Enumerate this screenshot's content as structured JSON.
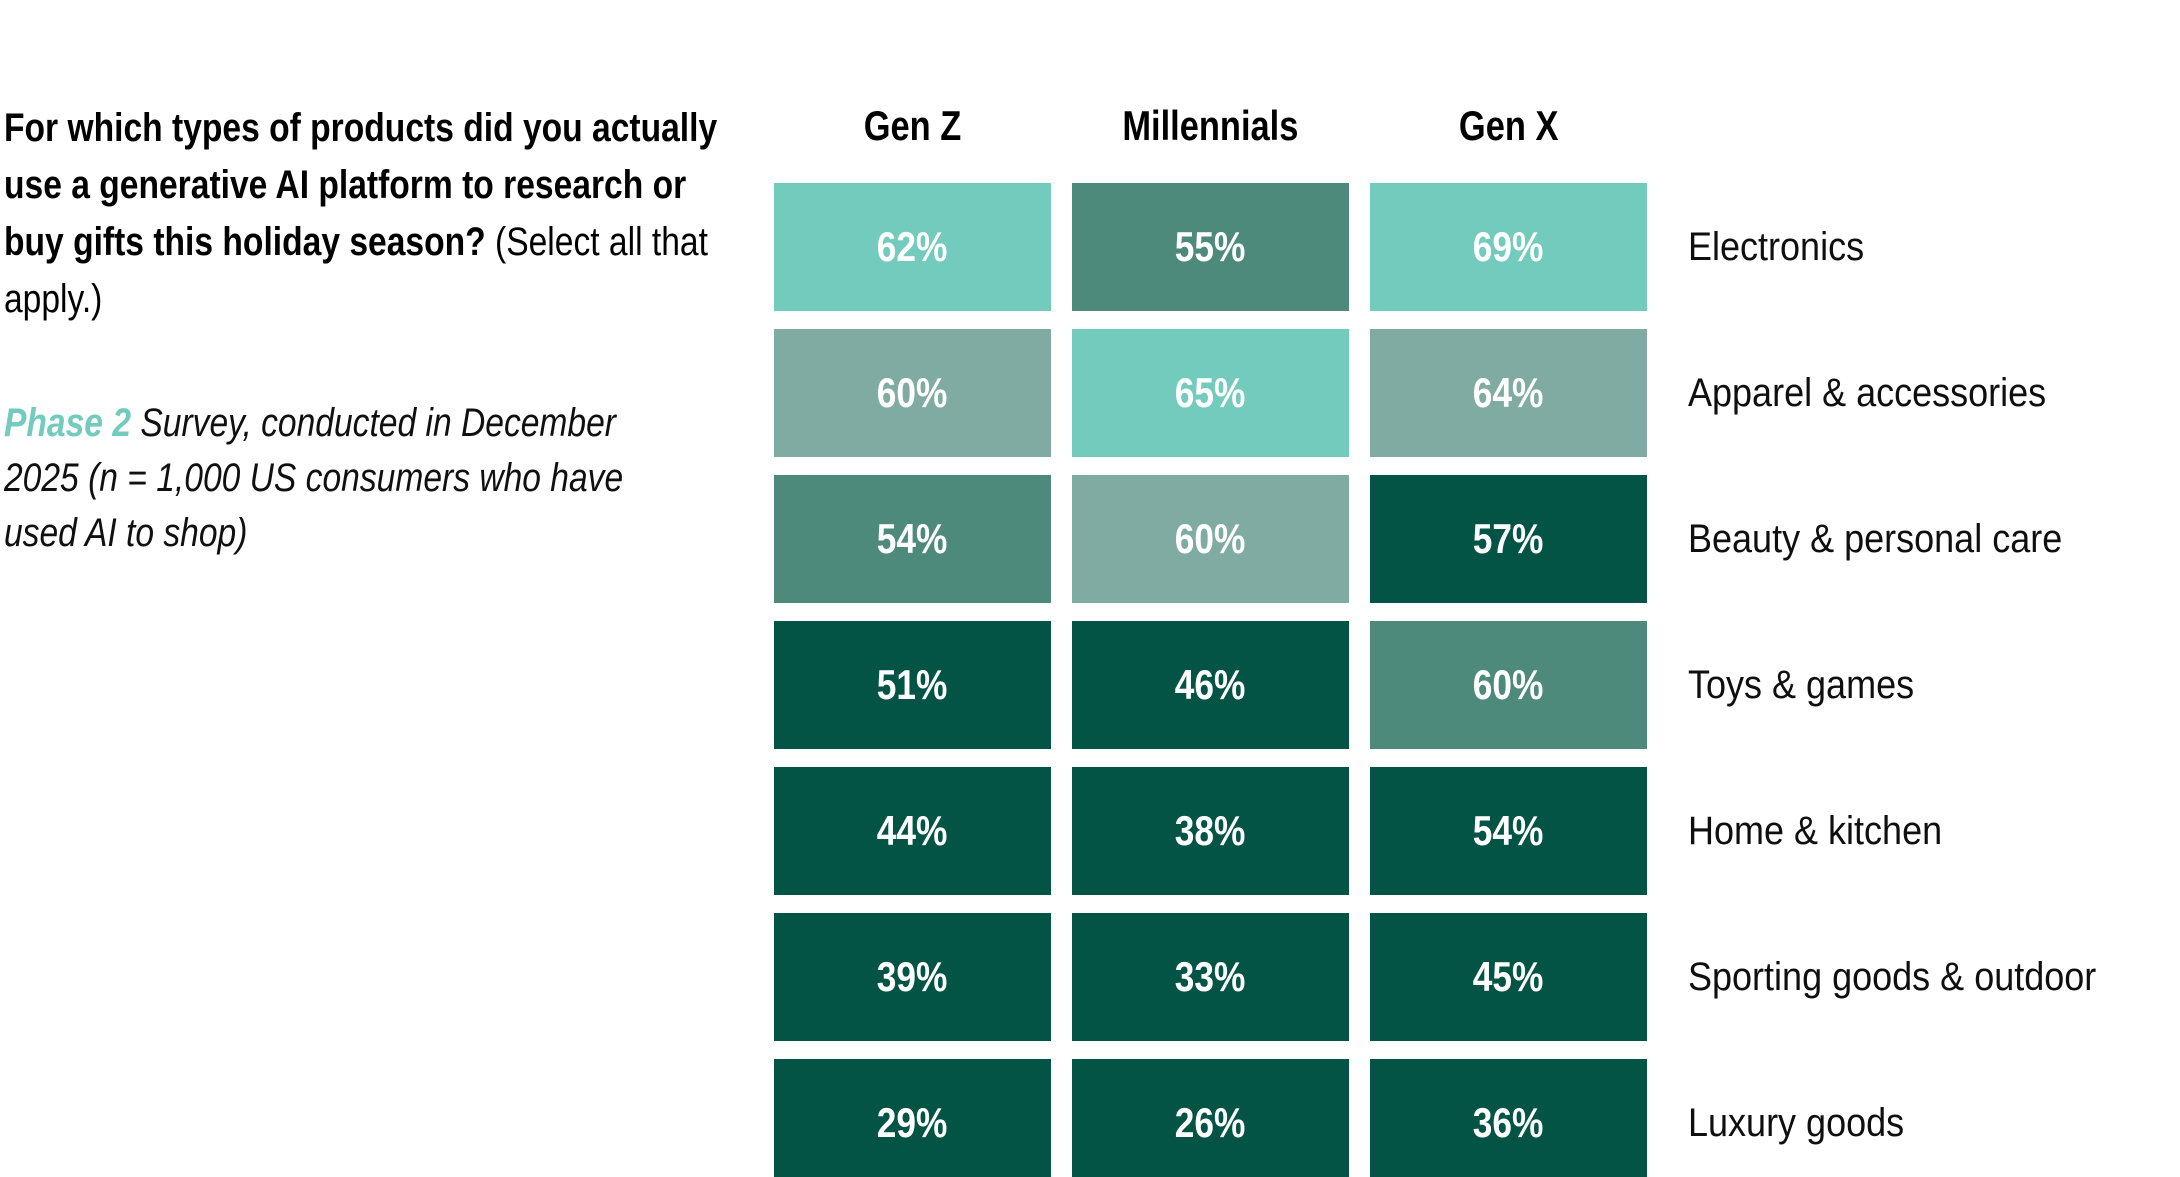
{
  "header": {
    "question_bold": "For which types of products did you actually use a generative AI platform to research or buy gifts this holiday season?",
    "question_note": " (Select all that apply.)",
    "source_accent": "Phase 2",
    "source_rest": " Survey, conducted in December 2025 (n = 1,000 US consumers who have used AI to shop)"
  },
  "chart_data": {
    "type": "heatmap",
    "title": "For which types of products did you actually use a generative AI platform to research or buy gifts this holiday season? (Select all that apply.)",
    "subtitle": "Phase 2 Survey, conducted in December 2025 (n = 1,000 US consumers who have used AI to shop)",
    "value_format": "percent",
    "legend": "none",
    "columns": [
      "Gen Z",
      "Millennials",
      "Gen X"
    ],
    "rows": [
      "Electronics",
      "Apparel & accessories",
      "Beauty & personal care",
      "Toys & games",
      "Home & kitchen",
      "Sporting goods & outdoor",
      "Luxury goods"
    ],
    "values": [
      [
        62,
        55,
        69
      ],
      [
        60,
        65,
        64
      ],
      [
        54,
        60,
        57
      ],
      [
        51,
        46,
        60
      ],
      [
        44,
        38,
        54
      ],
      [
        39,
        33,
        45
      ],
      [
        29,
        26,
        36
      ]
    ],
    "cells": [
      [
        "62%",
        "55%",
        "69%"
      ],
      [
        "60%",
        "65%",
        "64%"
      ],
      [
        "54%",
        "60%",
        "57%"
      ],
      [
        "51%",
        "46%",
        "60%"
      ],
      [
        "44%",
        "38%",
        "54%"
      ],
      [
        "39%",
        "33%",
        "45%"
      ],
      [
        "29%",
        "26%",
        "36%"
      ]
    ],
    "cell_colors": [
      [
        "#72CBBD",
        "#4E8A7C",
        "#72CBBD"
      ],
      [
        "#7FABA2",
        "#72CBBD",
        "#7FABA2"
      ],
      [
        "#4E8A7C",
        "#7FABA2",
        "#045446"
      ],
      [
        "#045446",
        "#045446",
        "#4E8A7C"
      ],
      [
        "#045446",
        "#045446",
        "#045446"
      ],
      [
        "#045446",
        "#045446",
        "#045446"
      ],
      [
        "#045446",
        "#045446",
        "#045446"
      ]
    ],
    "palette": {
      "tier1_lightest": "#72CBBD",
      "tier2_light_sage": "#7FABA2",
      "tier3_medium": "#4E8A7C",
      "tier4_dark": "#045446",
      "value_text": "#FFFFFF",
      "accent_text": "#72CBBD"
    }
  }
}
